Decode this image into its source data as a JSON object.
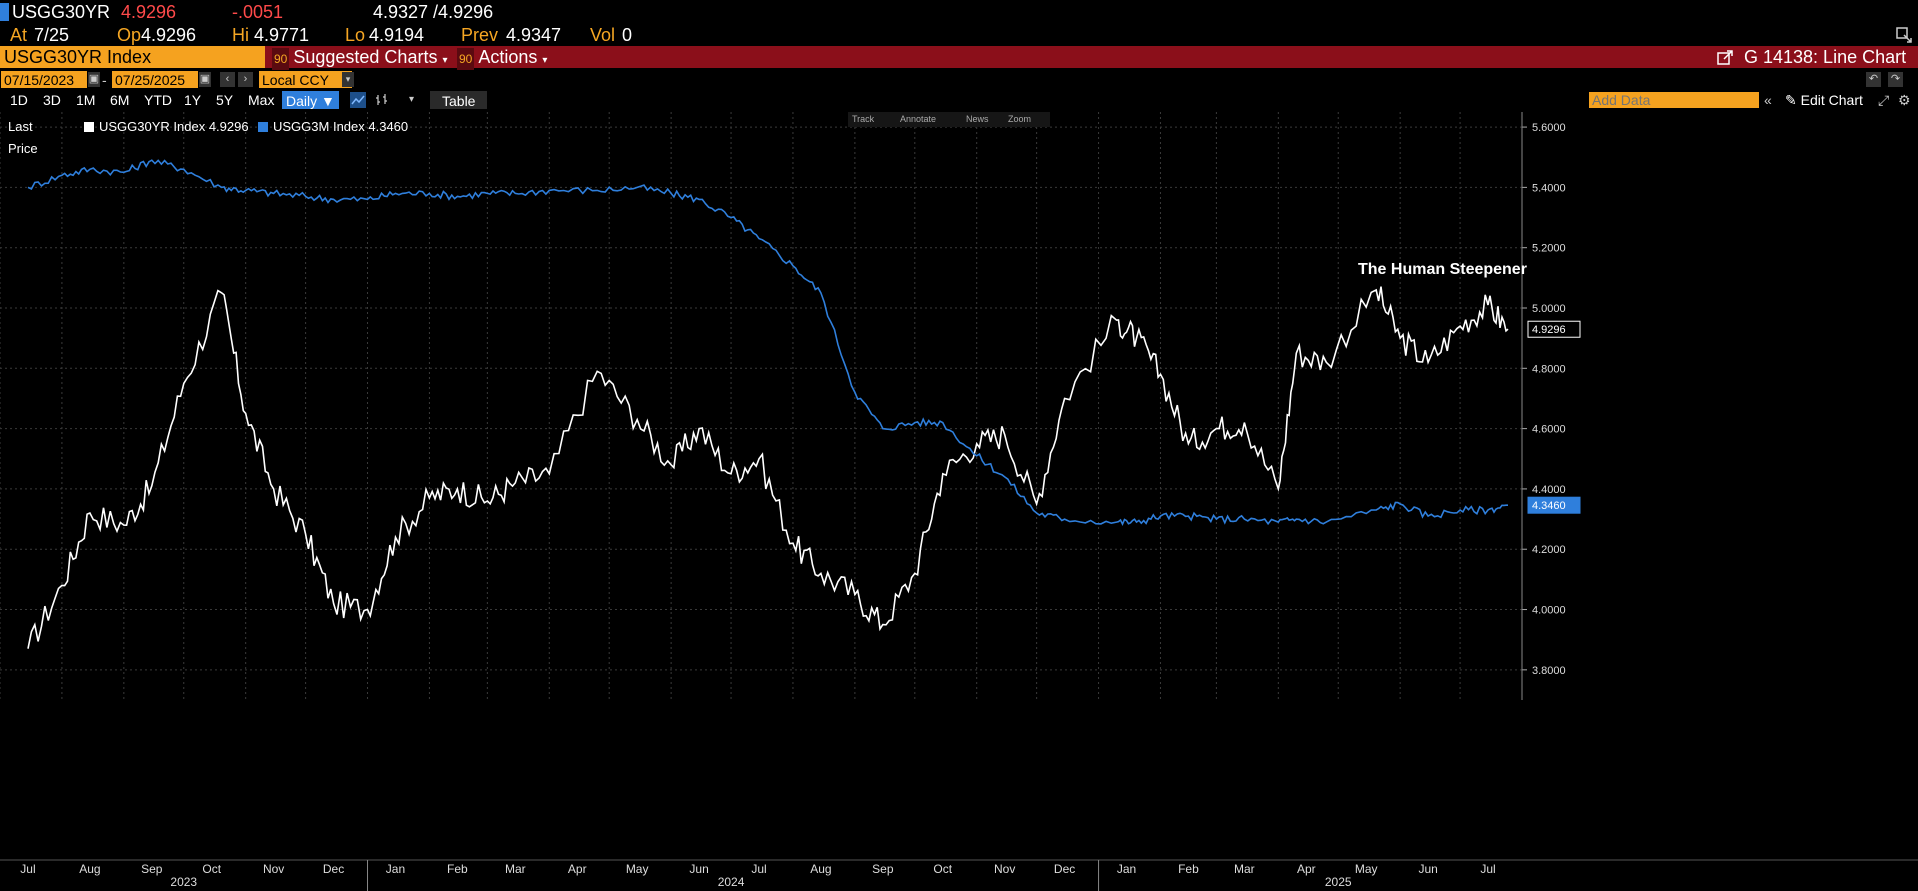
{
  "quote": {
    "ticker": "USGG30YR",
    "last": "4.9296",
    "change": "-.0051",
    "bid_ask": "4.9327 /4.9296",
    "at_label": "At",
    "at_value": "7/25",
    "op_label": "Op",
    "op_value": "4.9296",
    "hi_label": "Hi",
    "hi_value": "4.9771",
    "lo_label": "Lo",
    "lo_value": "4.9194",
    "prev_label": "Prev",
    "prev_value": "4.9347",
    "vol_label": "Vol",
    "vol_value": "0"
  },
  "toolbar": {
    "security": "USGG30YR Index",
    "suggested_num": "90",
    "suggested": "Suggested Charts",
    "actions_num": "90",
    "actions": "Actions",
    "chart_id": "G 14138: Line Chart"
  },
  "dates": {
    "start": "07/15/2023",
    "end": "07/25/2025",
    "currency": "Local CCY"
  },
  "periods": [
    "1D",
    "3D",
    "1M",
    "6M",
    "YTD",
    "1Y",
    "5Y",
    "Max"
  ],
  "frequency": "Daily",
  "table_label": "Table",
  "add_data_placeholder": "Add Data",
  "edit_chart": "Edit Chart",
  "tools": [
    "Track",
    "Annotate",
    "News",
    "Zoom"
  ],
  "legend": {
    "last_price": "Last Price",
    "series1": "USGG30YR Index 4.9296",
    "series2": "USGG3M Index 4.3460"
  },
  "colors": {
    "series1": "#ffffff",
    "series2": "#2f7fdc",
    "accent": "#f5a21f",
    "bar": "#8b0f1a"
  },
  "chart_data": {
    "type": "line",
    "annotation": "The Human Steepener",
    "ylim": [
      3.7,
      5.65
    ],
    "y_ticks": [
      "3.8000",
      "4.0000",
      "4.2000",
      "4.4000",
      "4.6000",
      "4.8000",
      "5.0000",
      "5.2000",
      "5.4000",
      "5.6000"
    ],
    "x_labels": [
      "Jul",
      "Aug",
      "Sep",
      "Oct",
      "Nov",
      "Dec",
      "Jan",
      "Feb",
      "Mar",
      "Apr",
      "May",
      "Jun",
      "Jul",
      "Aug",
      "Sep",
      "Oct",
      "Nov",
      "Dec",
      "Jan",
      "Feb",
      "Mar",
      "Apr",
      "May",
      "Jun",
      "Jul"
    ],
    "year_labels": [
      "2023",
      "2024",
      "2025"
    ],
    "x": [
      "2023-07-15",
      "2023-08-01",
      "2023-08-15",
      "2023-09-01",
      "2023-09-15",
      "2023-10-01",
      "2023-10-20",
      "2023-11-01",
      "2023-11-15",
      "2023-12-01",
      "2023-12-15",
      "2024-01-01",
      "2024-01-15",
      "2024-02-01",
      "2024-02-15",
      "2024-03-01",
      "2024-03-15",
      "2024-04-01",
      "2024-04-25",
      "2024-05-15",
      "2024-06-01",
      "2024-06-15",
      "2024-07-01",
      "2024-07-15",
      "2024-08-01",
      "2024-08-15",
      "2024-09-01",
      "2024-09-15",
      "2024-10-01",
      "2024-10-15",
      "2024-11-01",
      "2024-11-15",
      "2024-12-01",
      "2024-12-15",
      "2025-01-10",
      "2025-01-20",
      "2025-02-01",
      "2025-02-15",
      "2025-03-01",
      "2025-03-15",
      "2025-04-01",
      "2025-04-10",
      "2025-04-25",
      "2025-05-20",
      "2025-06-01",
      "2025-06-15",
      "2025-07-01",
      "2025-07-15",
      "2025-07-25"
    ],
    "series": [
      {
        "name": "USGG30YR Index",
        "last": "4.9296",
        "values": [
          3.87,
          4.08,
          4.32,
          4.28,
          4.41,
          4.75,
          5.05,
          4.65,
          4.4,
          4.25,
          4.02,
          4.0,
          4.24,
          4.37,
          4.4,
          4.36,
          4.42,
          4.45,
          4.79,
          4.63,
          4.48,
          4.6,
          4.45,
          4.5,
          4.22,
          4.12,
          4.05,
          3.95,
          4.12,
          4.45,
          4.55,
          4.58,
          4.35,
          4.7,
          4.96,
          4.9,
          4.78,
          4.55,
          4.6,
          4.62,
          4.4,
          4.85,
          4.82,
          5.06,
          4.9,
          4.82,
          4.94,
          5.01,
          4.93
        ]
      },
      {
        "name": "USGG3M Index",
        "last": "4.3460",
        "values": [
          5.4,
          5.44,
          5.46,
          5.45,
          5.49,
          5.46,
          5.4,
          5.39,
          5.38,
          5.37,
          5.36,
          5.36,
          5.38,
          5.38,
          5.37,
          5.38,
          5.38,
          5.39,
          5.39,
          5.4,
          5.38,
          5.36,
          5.3,
          5.23,
          5.14,
          5.05,
          4.72,
          4.6,
          4.62,
          4.62,
          4.51,
          4.44,
          4.32,
          4.3,
          4.29,
          4.29,
          4.31,
          4.31,
          4.3,
          4.3,
          4.29,
          4.3,
          4.29,
          4.33,
          4.35,
          4.31,
          4.33,
          4.33,
          4.346
        ]
      }
    ]
  }
}
